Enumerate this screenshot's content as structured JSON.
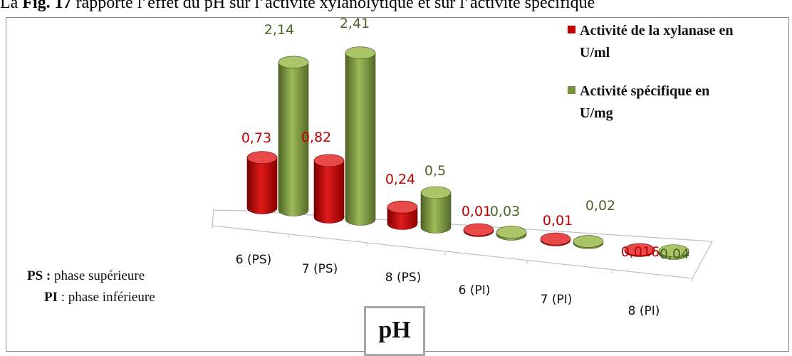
{
  "intro_text": {
    "prefix": "La ",
    "fig": "Fig. 17",
    "rest": " rapporte l’effet du pH sur l’activité xylanolytique et sur l’activité spécifique"
  },
  "notes": {
    "ps_abbr": "PS :",
    "ps_text": " phase supérieure",
    "pi_abbr": "PI",
    "pi_text": " : phase inférieure"
  },
  "chart_data": {
    "type": "bar",
    "style": "3d-cylinder",
    "xlabel": "pH",
    "categories": [
      "6  (PS)",
      "7  (PS)",
      "8  (PS)",
      "6  (PI)",
      "7  (PI)",
      "8  (PI)"
    ],
    "series": [
      {
        "name": "Activité de la xylanase en U/ml",
        "legend_lines": [
          "Activité de la xylanase en",
          "U/ml"
        ],
        "color": "#c00000",
        "values": [
          0.73,
          0.82,
          0.24,
          0.01,
          0.01,
          0.016
        ],
        "labels": [
          "0,73",
          "0,82",
          "0,24",
          "0,01",
          "0,01",
          "0,016"
        ]
      },
      {
        "name": "Activité spécifique en U/mg",
        "legend_lines": [
          "Activité spécifique en",
          "U/mg"
        ],
        "color": "#77933c",
        "values": [
          2.14,
          2.41,
          0.5,
          0.03,
          0.02,
          0.04
        ],
        "labels": [
          "2,14",
          "2,41",
          "0,5",
          "0,03",
          "0,02",
          "0,04"
        ]
      }
    ],
    "legend_position": "top-right",
    "grid": false
  }
}
